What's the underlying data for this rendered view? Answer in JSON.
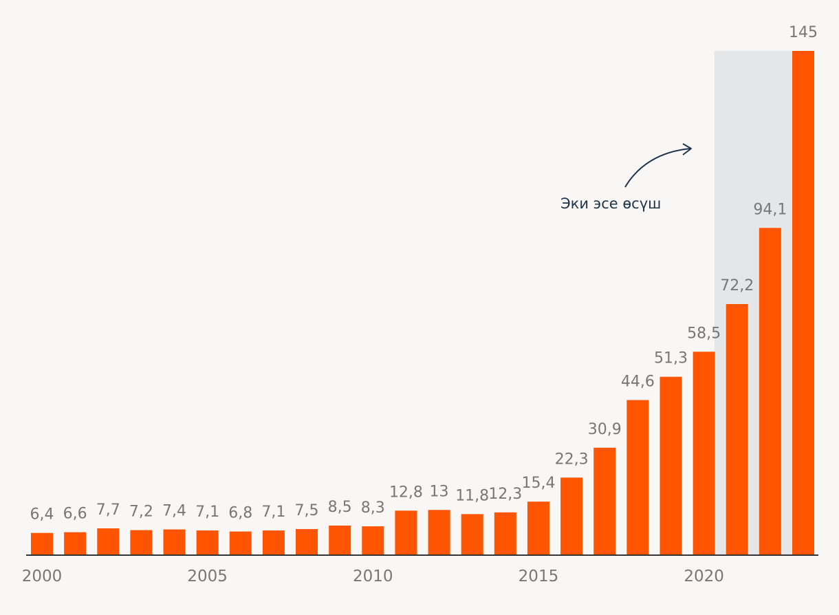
{
  "chart_data": {
    "type": "bar",
    "categories": [
      "2000",
      "2001",
      "2002",
      "2003",
      "2004",
      "2005",
      "2006",
      "2007",
      "2008",
      "2009",
      "2010",
      "2011",
      "2012",
      "2013",
      "2014",
      "2015",
      "2016",
      "2017",
      "2018",
      "2019",
      "2020",
      "2021",
      "2022",
      "2023"
    ],
    "values": [
      6.4,
      6.6,
      7.7,
      7.2,
      7.4,
      7.1,
      6.8,
      7.1,
      7.5,
      8.5,
      8.3,
      12.8,
      13,
      11.8,
      12.3,
      15.4,
      22.3,
      30.9,
      44.6,
      51.3,
      58.5,
      72.2,
      94.1,
      145
    ],
    "value_labels": [
      "6,4",
      "6,6",
      "7,7",
      "7,2",
      "7,4",
      "7,1",
      "6,8",
      "7,1",
      "7,5",
      "8,5",
      "8,3",
      "12,8",
      "13",
      "11,8",
      "12,3",
      "15,4",
      "22,3",
      "30,9",
      "44,6",
      "51,3",
      "58,5",
      "72,2",
      "94,1",
      "145"
    ],
    "x_tick_labels": [
      "2000",
      "2005",
      "2010",
      "2015",
      "2020"
    ],
    "ylim": [
      0,
      145
    ],
    "grid": false,
    "highlight_range": [
      "2021",
      "2023"
    ],
    "title": "",
    "xlabel": "",
    "ylabel": ""
  },
  "annotation": {
    "text": "Эки эсе өсүш"
  },
  "colors": {
    "bar": "#ff5500",
    "highlight": "#e5e6e8",
    "value_label": "#777777",
    "axis": "#333333",
    "annotation": "#1f3349",
    "background": "#f8f7f5"
  }
}
